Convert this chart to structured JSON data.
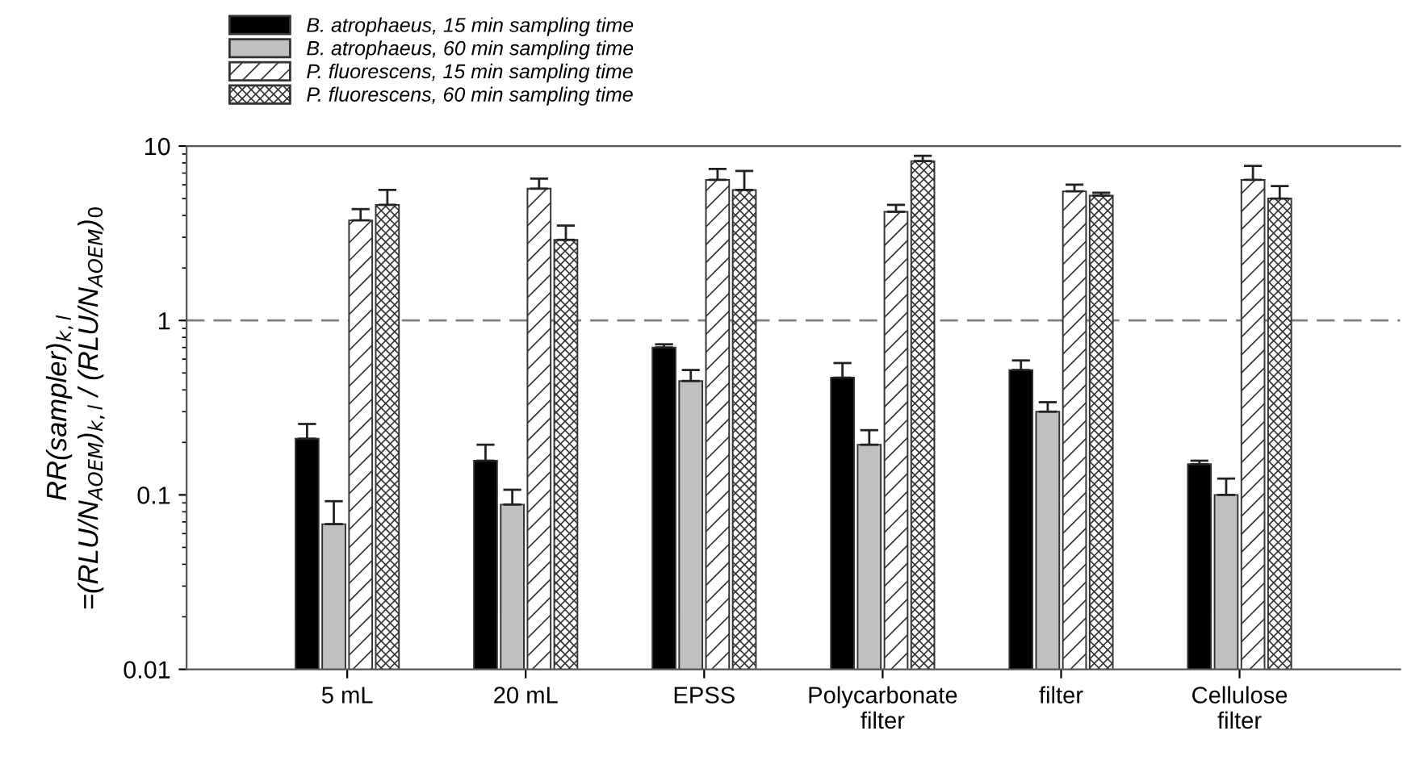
{
  "chart_data": {
    "type": "bar",
    "ylabel": "RR(sampler)$_{k,l}$\n=(RLU/N$_{AOEM}$)$_{k,l}$ / (RLU/N$_{AOEM}$)$_{0}$",
    "categories": [
      "5 mL",
      "20 mL",
      "EPSS",
      "Polycarbonate\nfilter",
      "filter",
      "Cellulose\nfilter"
    ],
    "series": [
      {
        "name": "B. atrophaeus, 15 min sampling time",
        "color": "#000000",
        "values": [
          0.21,
          0.157,
          0.7,
          0.47,
          0.52,
          0.15
        ],
        "errors": [
          [
            0.21,
            0.255
          ],
          [
            0.157,
            0.194
          ],
          [
            0.7,
            0.73
          ],
          [
            0.47,
            0.57
          ],
          [
            0.52,
            0.59
          ],
          [
            0.15,
            0.157
          ]
        ]
      },
      {
        "name": "B. atrophaeus, 60 min sampling time",
        "color": "#c0c0c0",
        "values": [
          0.068,
          0.088,
          0.45,
          0.194,
          0.3,
          0.1
        ],
        "errors": [
          [
            0.068,
            0.092
          ],
          [
            0.088,
            0.107
          ],
          [
            0.45,
            0.52
          ],
          [
            0.194,
            0.235
          ],
          [
            0.3,
            0.34
          ],
          [
            0.1,
            0.124
          ]
        ]
      },
      {
        "name": "P. fluorescens, 15 min sampling time",
        "color": "#333333",
        "values": [
          3.75,
          5.7,
          6.4,
          4.2,
          5.5,
          6.4
        ],
        "errors": [
          [
            3.75,
            4.35
          ],
          [
            5.7,
            6.5
          ],
          [
            6.4,
            7.4
          ],
          [
            4.2,
            4.6
          ],
          [
            5.5,
            6.0
          ],
          [
            6.4,
            7.7
          ]
        ]
      },
      {
        "name": "P. fluorescens, 60 min sampling time",
        "color": "#333333",
        "values": [
          4.6,
          2.9,
          5.6,
          8.2,
          5.2,
          5.0
        ],
        "errors": [
          [
            4.6,
            5.6
          ],
          [
            2.9,
            3.5
          ],
          [
            5.6,
            7.2
          ],
          [
            8.2,
            8.8
          ],
          [
            5.2,
            5.4
          ],
          [
            5.0,
            5.9
          ]
        ]
      }
    ],
    "log": "y",
    "ylim": [
      0.01,
      10
    ],
    "yticks": [
      0.01,
      0.1,
      1,
      10
    ],
    "ref_lines": [
      {
        "axis": "y",
        "value": 1,
        "color": "#808080",
        "line_style": "dashed"
      }
    ],
    "legend": "top left",
    "grid": false
  }
}
